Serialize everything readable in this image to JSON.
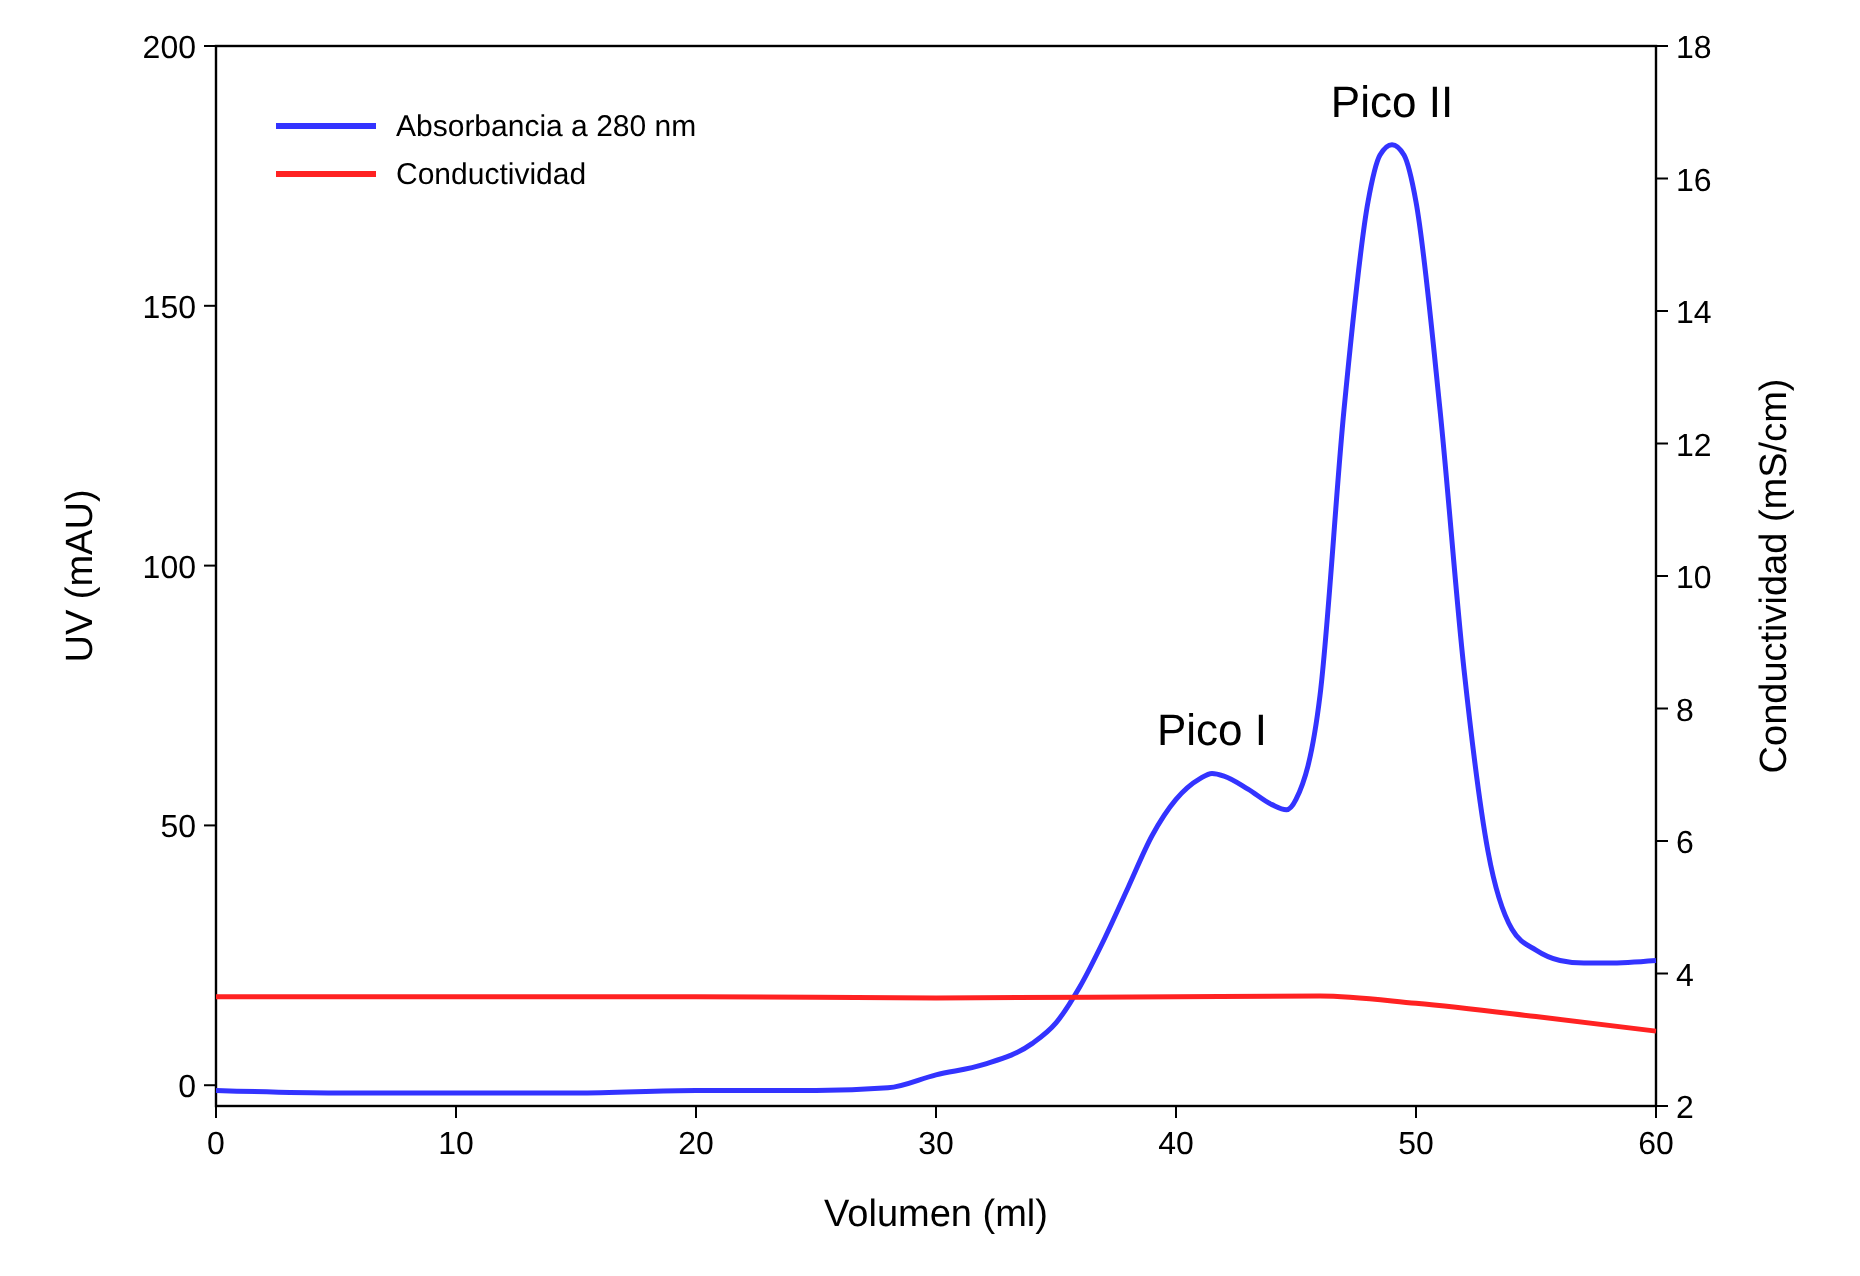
{
  "chart_data": {
    "type": "line",
    "xlabel": "Volumen (ml)",
    "ylabel": "UV (mAU)",
    "y2label": "Conductividad (mS/cm)",
    "xlim": [
      0,
      60
    ],
    "xticks": [
      0,
      10,
      20,
      30,
      40,
      50,
      60
    ],
    "ylim": [
      -4,
      200
    ],
    "yticks": [
      0,
      50,
      100,
      150,
      200
    ],
    "y2lim": [
      2,
      18
    ],
    "y2ticks": [
      2,
      4,
      6,
      8,
      10,
      12,
      14,
      16,
      18
    ],
    "legend": "top left",
    "grid": false,
    "series": [
      {
        "name": "Absorbancia a 280 nm",
        "color": "#3333ff",
        "x": [
          0,
          5,
          10,
          15,
          20,
          25,
          28,
          30,
          32,
          34,
          35,
          36,
          37,
          38,
          39,
          40,
          41,
          41.5,
          42,
          43,
          44,
          44.6,
          45,
          46,
          47,
          48,
          48.5,
          49,
          49.5,
          50,
          51,
          52,
          53,
          54,
          55,
          56,
          57,
          58,
          60
        ],
        "values": [
          -1,
          -1.5,
          -1.5,
          -1.5,
          -1,
          -1,
          -0.5,
          2,
          4,
          8,
          12,
          19,
          28,
          38,
          48,
          55,
          59,
          60,
          59.5,
          57,
          54,
          53,
          55,
          75,
          130,
          170,
          179,
          181,
          179,
          170,
          130,
          80,
          45,
          30,
          26,
          24,
          23.5,
          23.5,
          24
        ]
      },
      {
        "name": "Conductividad",
        "color": "#ff2222",
        "axis": "y2",
        "x": [
          0,
          10,
          20,
          30,
          40,
          46,
          50,
          55,
          60
        ],
        "values": [
          3.65,
          3.65,
          3.65,
          3.63,
          3.65,
          3.66,
          3.55,
          3.35,
          3.13
        ]
      }
    ],
    "annotations": [
      {
        "text": "Pico I",
        "x": 41.5,
        "y": 60
      },
      {
        "text": "Pico II",
        "x": 49,
        "y": 181
      }
    ]
  }
}
